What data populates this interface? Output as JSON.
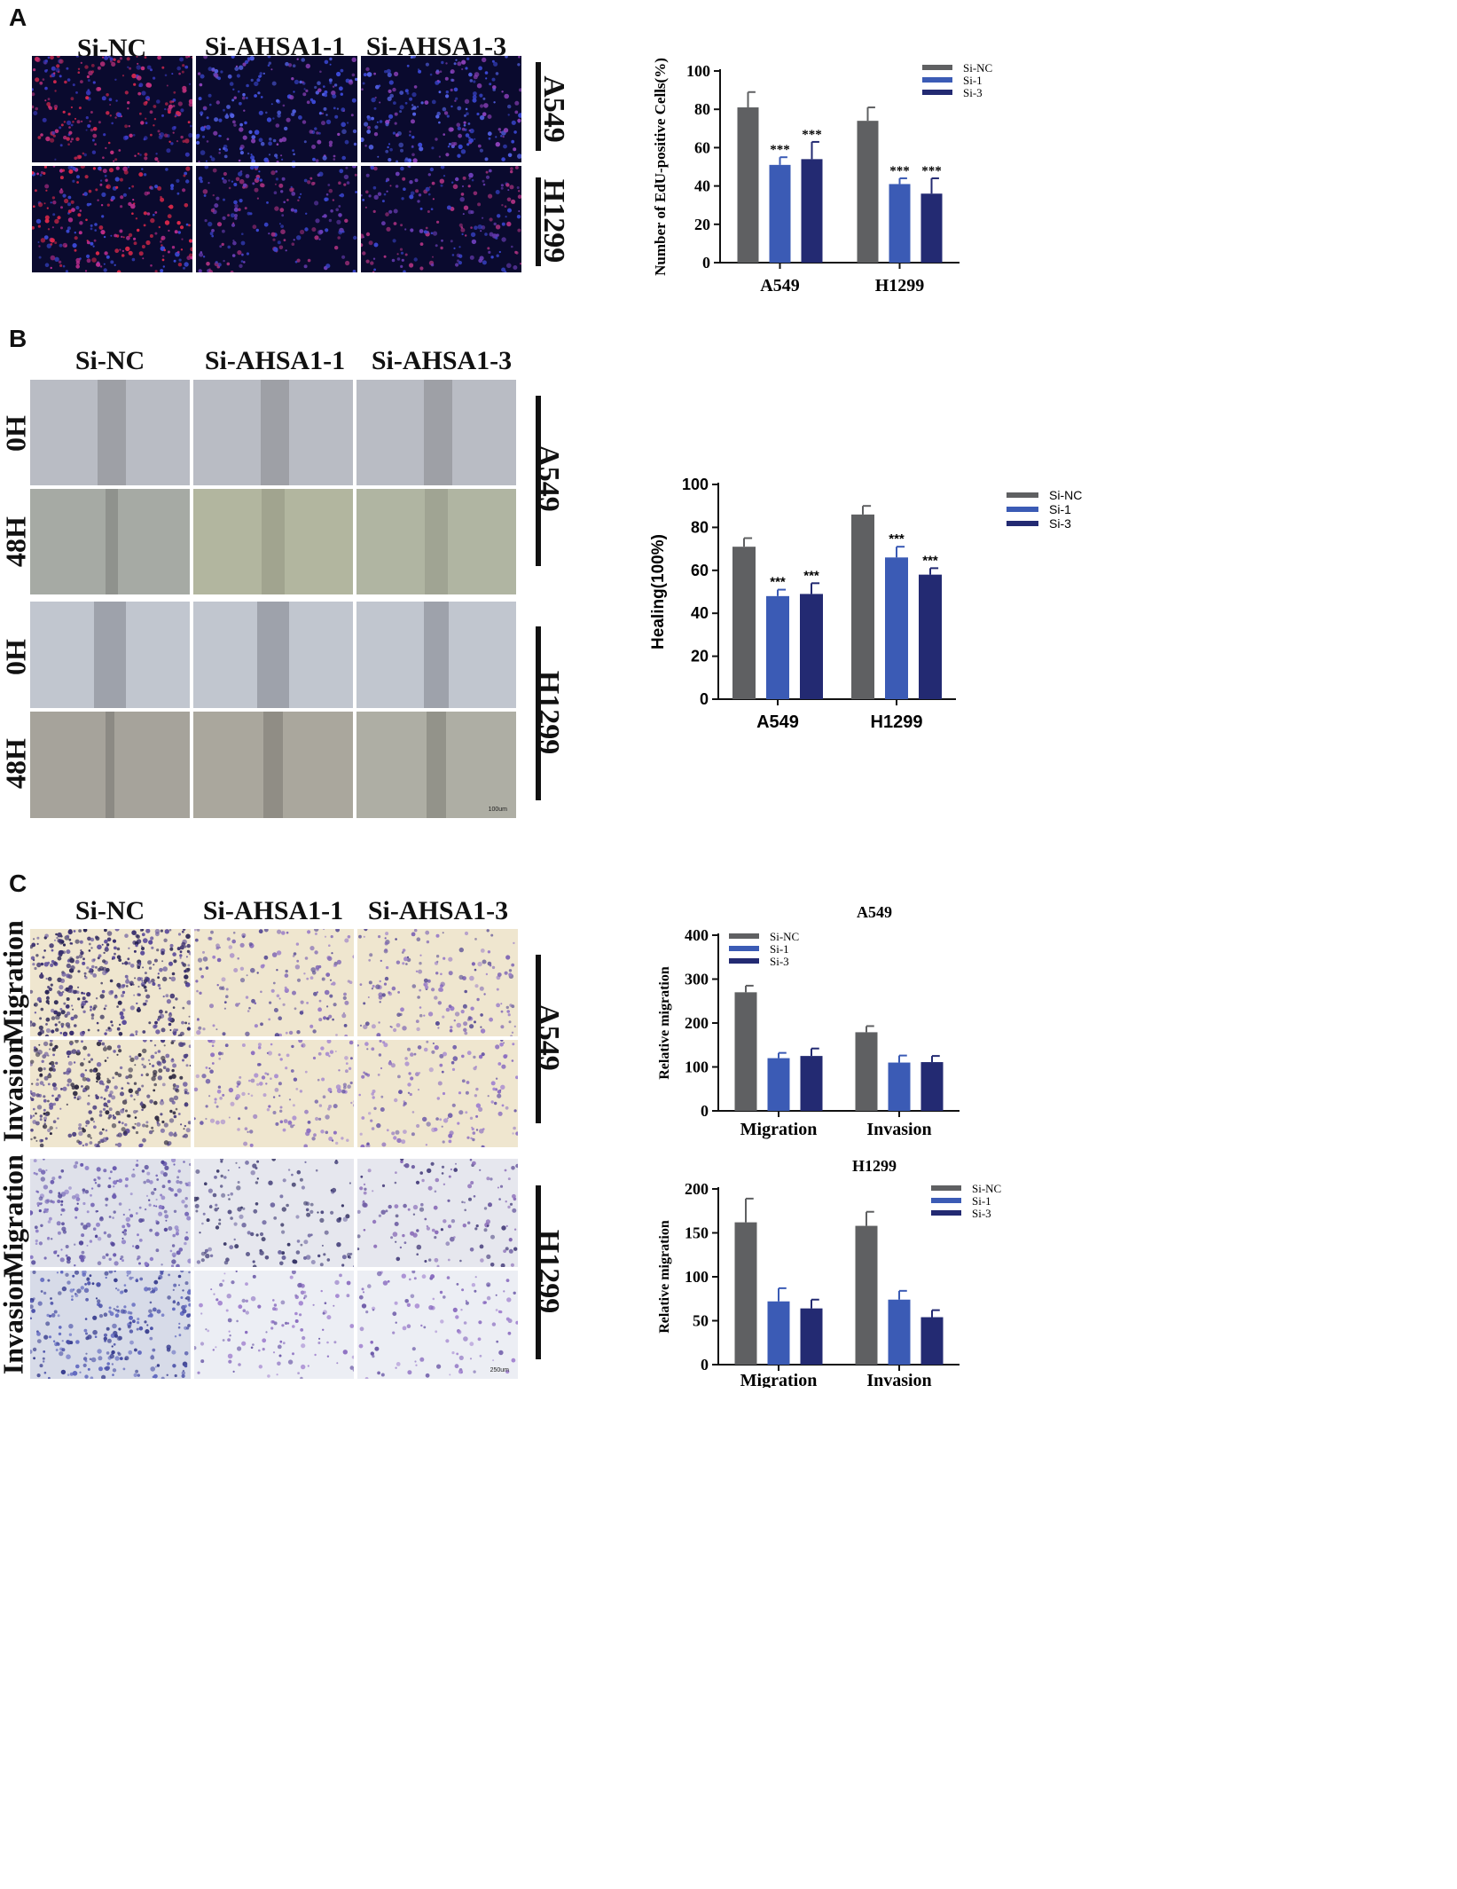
{
  "panels": {
    "A": {
      "letter": "A",
      "columns": [
        "Si-NC",
        "Si-AHSA1-1",
        "Si-AHSA1-3"
      ],
      "cell_lines": [
        "A549",
        "H1299"
      ]
    },
    "B": {
      "letter": "B",
      "columns": [
        "Si-NC",
        "Si-AHSA1-1",
        "Si-AHSA1-3"
      ],
      "rows": [
        "0H",
        "48H",
        "0H",
        "48H"
      ],
      "cell_lines": [
        "A549",
        "H1299"
      ],
      "scale_label": "100um"
    },
    "C": {
      "letter": "C",
      "columns": [
        "Si-NC",
        "Si-AHSA1-1",
        "Si-AHSA1-3"
      ],
      "rows": [
        "Migration",
        "Invasion",
        "Migration",
        "Invasion"
      ],
      "cell_lines": [
        "A549",
        "H1299"
      ],
      "scale_label": "250um"
    }
  },
  "colors": {
    "si_nc": "#5f6062",
    "si_1": "#3b5bb5",
    "si_3": "#232a72"
  },
  "chart_data": [
    {
      "type": "bar",
      "title": "",
      "categories": [
        "A549",
        "H1299"
      ],
      "series": [
        {
          "name": "Si-NC",
          "values": [
            81,
            74
          ],
          "errors": [
            8,
            7
          ]
        },
        {
          "name": "Si-1",
          "values": [
            51,
            41
          ],
          "errors": [
            4,
            3
          ]
        },
        {
          "name": "Si-3",
          "values": [
            54,
            36
          ],
          "errors": [
            9,
            8
          ]
        }
      ],
      "significance": [
        [
          "",
          "***",
          "***"
        ],
        [
          "",
          "***",
          "***"
        ]
      ],
      "ylabel": "Number of EdU-positive Cells(%)",
      "xlabel": "",
      "ylim": [
        0,
        100
      ],
      "yticks": [
        "0",
        "20",
        "40",
        "60",
        "80",
        "100"
      ],
      "legend": "top-right"
    },
    {
      "type": "bar",
      "title": "",
      "categories": [
        "A549",
        "H1299"
      ],
      "series": [
        {
          "name": "Si-NC",
          "values": [
            71,
            86
          ],
          "errors": [
            4,
            4
          ]
        },
        {
          "name": "Si-1",
          "values": [
            48,
            66
          ],
          "errors": [
            3,
            5
          ]
        },
        {
          "name": "Si-3",
          "values": [
            49,
            58
          ],
          "errors": [
            5,
            3
          ]
        }
      ],
      "significance": [
        [
          "",
          "***",
          "***"
        ],
        [
          "",
          "***",
          "***"
        ]
      ],
      "ylabel": "Healing(100%)",
      "xlabel": "",
      "ylim": [
        0,
        100
      ],
      "yticks": [
        "0",
        "20",
        "40",
        "60",
        "80",
        "100"
      ],
      "legend": "top-right"
    },
    {
      "type": "bar",
      "title": "A549",
      "categories": [
        "Migration",
        "Invasion"
      ],
      "series": [
        {
          "name": "Si-NC",
          "values": [
            270,
            179
          ],
          "errors": [
            15,
            14
          ]
        },
        {
          "name": "Si-1",
          "values": [
            120,
            110
          ],
          "errors": [
            12,
            16
          ]
        },
        {
          "name": "Si-3",
          "values": [
            125,
            111
          ],
          "errors": [
            17,
            14
          ]
        }
      ],
      "ylabel": "Relative migration",
      "xlabel": "",
      "ylim": [
        0,
        400
      ],
      "yticks": [
        "0",
        "100",
        "200",
        "300",
        "400"
      ],
      "legend": "top-left"
    },
    {
      "type": "bar",
      "title": "H1299",
      "categories": [
        "Migration",
        "Invasion"
      ],
      "series": [
        {
          "name": "Si-NC",
          "values": [
            162,
            158
          ],
          "errors": [
            27,
            16
          ]
        },
        {
          "name": "Si-1",
          "values": [
            72,
            74
          ],
          "errors": [
            15,
            10
          ]
        },
        {
          "name": "Si-3",
          "values": [
            64,
            54
          ],
          "errors": [
            10,
            8
          ]
        }
      ],
      "ylabel": "Relative migration",
      "xlabel": "",
      "ylim": [
        0,
        200
      ],
      "yticks": [
        "0",
        "50",
        "100",
        "150",
        "200"
      ],
      "legend": "top-right"
    }
  ]
}
